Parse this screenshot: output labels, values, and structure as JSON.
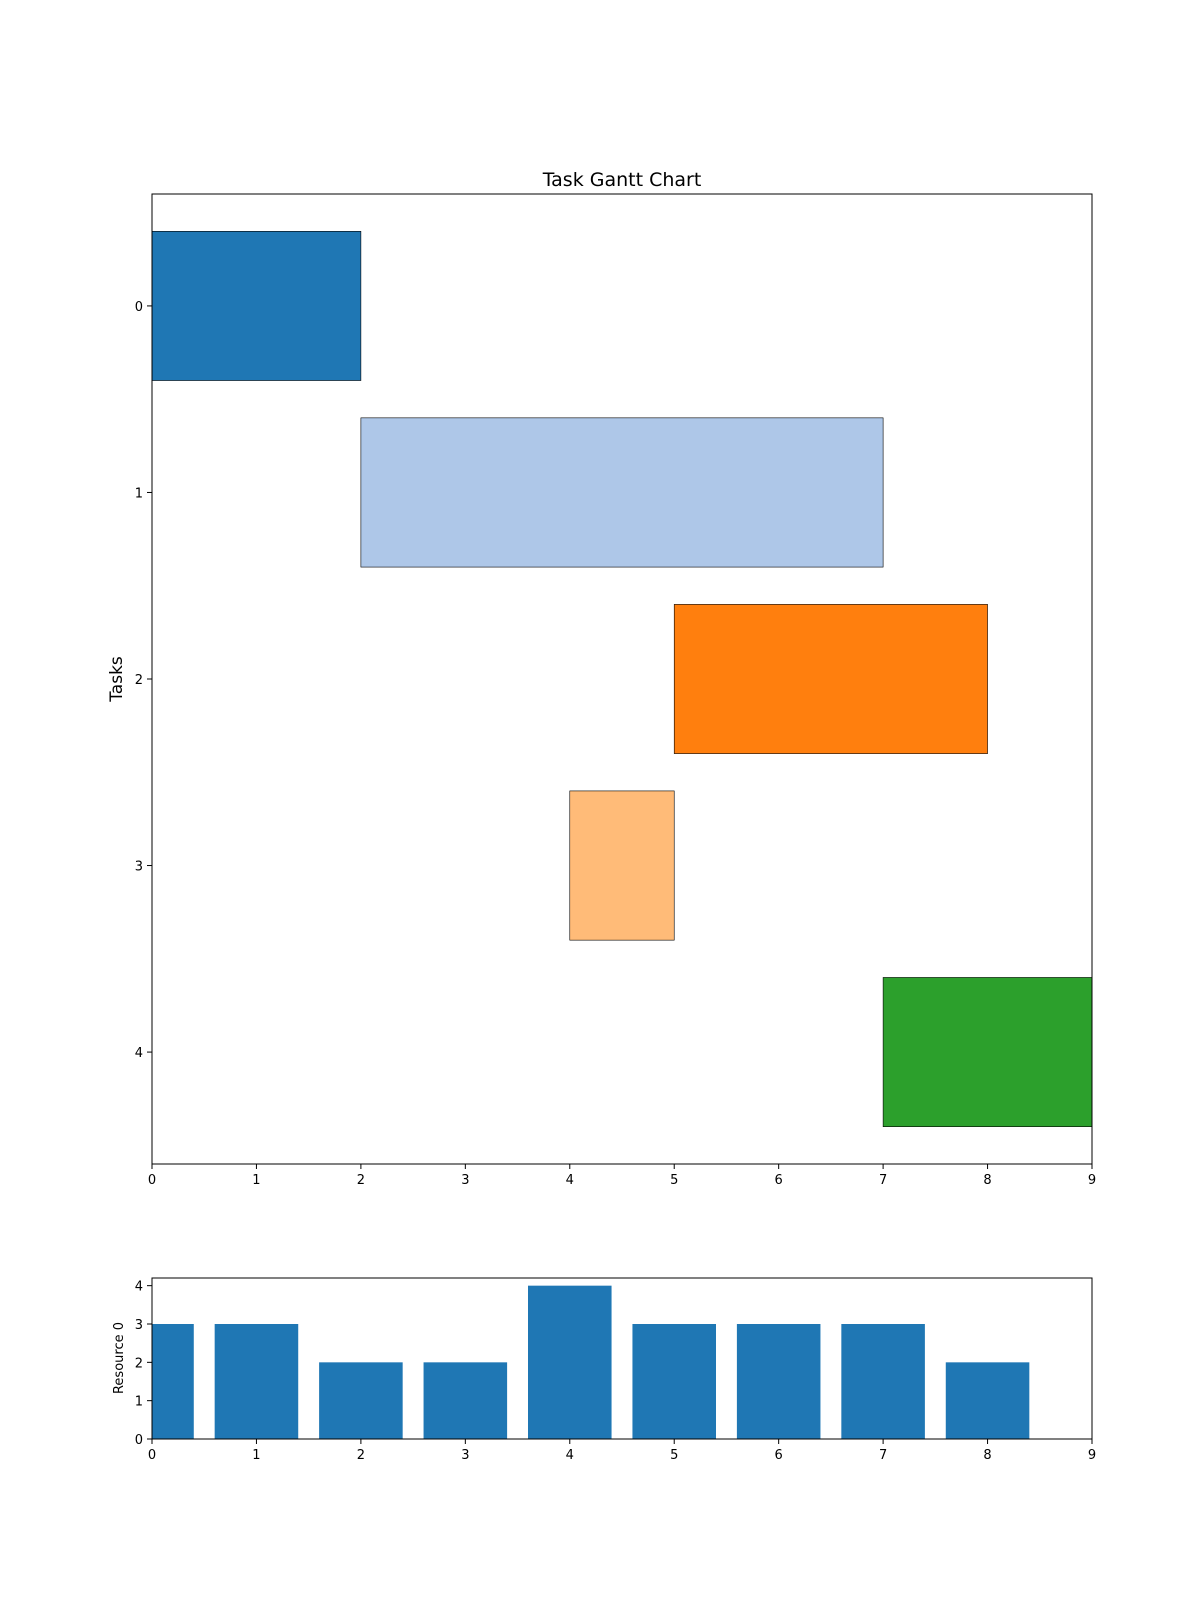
{
  "chart_data": [
    {
      "type": "gantt",
      "title": "Task Gantt Chart",
      "xlabel": "",
      "ylabel": "Tasks",
      "xlim": [
        0,
        9
      ],
      "x_ticks": [
        0,
        1,
        2,
        3,
        4,
        5,
        6,
        7,
        8,
        9
      ],
      "y_ticks": [
        0,
        1,
        2,
        3,
        4
      ],
      "y_inverted": true,
      "bar_height": 0.8,
      "grid": false,
      "tasks": [
        {
          "task": 0,
          "start": 0,
          "end": 2,
          "color": "#1f77b4"
        },
        {
          "task": 1,
          "start": 2,
          "end": 7,
          "color": "#aec7e8"
        },
        {
          "task": 2,
          "start": 5,
          "end": 8,
          "color": "#ff7f0e"
        },
        {
          "task": 3,
          "start": 4,
          "end": 5,
          "color": "#ffbb78"
        },
        {
          "task": 4,
          "start": 7,
          "end": 9,
          "color": "#2ca02c"
        }
      ]
    },
    {
      "type": "bar",
      "title": "",
      "xlabel": "",
      "ylabel": "Resource 0",
      "xlim": [
        0,
        9
      ],
      "ylim": [
        0,
        4.2
      ],
      "x_ticks": [
        0,
        1,
        2,
        3,
        4,
        5,
        6,
        7,
        8,
        9
      ],
      "y_ticks": [
        0,
        1,
        2,
        3,
        4
      ],
      "bar_width": 0.8,
      "grid": false,
      "color": "#1f77b4",
      "x": [
        0,
        1,
        2,
        3,
        4,
        5,
        6,
        7,
        8
      ],
      "values": [
        3,
        3,
        2,
        2,
        4,
        3,
        3,
        3,
        2
      ]
    }
  ]
}
